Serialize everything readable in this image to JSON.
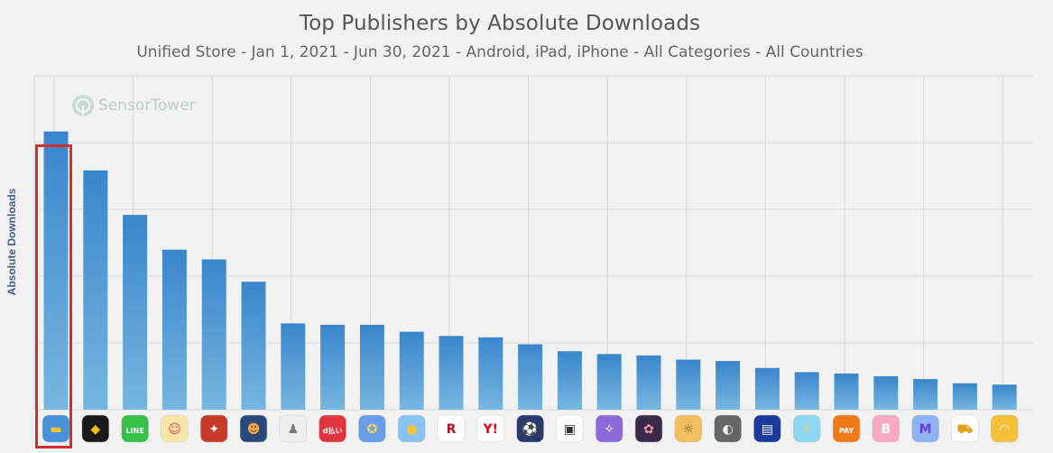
{
  "chart_data": {
    "type": "bar",
    "title": "Top Publishers by Absolute Downloads",
    "subtitle": "Unified Store - Jan 1, 2021 - Jun 30, 2021 - Android, iPad, iPhone - All Categories - All Countries",
    "xlabel": "",
    "ylabel": "Absolute Downloads",
    "watermark": "SensorTower",
    "categories": [
      "",
      "",
      "",
      "",
      "",
      "",
      "",
      "",
      "",
      "",
      "",
      "",
      "",
      "",
      "",
      "",
      "",
      "",
      "",
      "",
      "",
      "",
      "",
      "",
      ""
    ],
    "values": [
      100,
      86,
      70,
      57.5,
      54,
      46,
      31,
      30.5,
      30.5,
      28,
      26.5,
      26,
      23.5,
      21,
      20,
      19.5,
      18,
      17.5,
      15,
      13.5,
      13,
      12,
      11,
      9.5,
      9
    ],
    "ylim": [
      0,
      120
    ],
    "gridlines": true,
    "highlight_index": 0,
    "colors": {
      "bar_top": "#3a86cc",
      "bar_bottom": "#76b6e0",
      "highlight_box": "#d0302a",
      "grid": "#d8d8d8"
    },
    "icons": [
      {
        "name": "blue-car-icon",
        "bg": "#4a90d9",
        "fg": "#f2c230",
        "glyph": "▬"
      },
      {
        "name": "black-app-icon",
        "bg": "#1a1a1a",
        "fg": "#f0c000",
        "glyph": "◆"
      },
      {
        "name": "line-icon",
        "bg": "#35c14a",
        "fg": "#ffffff",
        "glyph": "LINE"
      },
      {
        "name": "cartoon-icon",
        "bg": "#f6e7a8",
        "fg": "#d44",
        "glyph": "☺"
      },
      {
        "name": "game-red-icon",
        "bg": "#c83a2a",
        "fg": "#ffffff",
        "glyph": "✦"
      },
      {
        "name": "anime-icon",
        "bg": "#2b4a7a",
        "fg": "#f4a640",
        "glyph": "☻"
      },
      {
        "name": "figure-icon",
        "bg": "#eeeeee",
        "fg": "#777777",
        "glyph": "♟"
      },
      {
        "name": "dpay-icon",
        "bg": "#e0353f",
        "fg": "#ffffff",
        "glyph": "d払い"
      },
      {
        "name": "game-colorful-icon",
        "bg": "#6a9de8",
        "fg": "#ffd34a",
        "glyph": "✪"
      },
      {
        "name": "ball-game-icon",
        "bg": "#8ac2f0",
        "fg": "#f6c23c",
        "glyph": "●"
      },
      {
        "name": "rakuten-icon",
        "bg": "#ffffff",
        "fg": "#b5121b",
        "glyph": "R"
      },
      {
        "name": "yahoo-icon",
        "bg": "#ffffff",
        "fg": "#e60012",
        "glyph": "Y!"
      },
      {
        "name": "soccer-icon",
        "bg": "#2a3a6a",
        "fg": "#e04040",
        "glyph": "⚽"
      },
      {
        "name": "canon-icon",
        "bg": "#ffffff",
        "fg": "#333333",
        "glyph": "▣"
      },
      {
        "name": "game-character-icon",
        "bg": "#8b6bd8",
        "fg": "#ffffff",
        "glyph": "✧"
      },
      {
        "name": "anime-girl-icon",
        "bg": "#3a2a4a",
        "fg": "#f29ab2",
        "glyph": "✿"
      },
      {
        "name": "character-yellow-icon",
        "bg": "#f0c060",
        "fg": "#7a5a2a",
        "glyph": "☼"
      },
      {
        "name": "monochrome-icon",
        "bg": "#666666",
        "fg": "#eeeeee",
        "glyph": "◐"
      },
      {
        "name": "epson-icon",
        "bg": "#1b3a9a",
        "fg": "#ffffff",
        "glyph": "▤"
      },
      {
        "name": "pokemon-icon",
        "bg": "#8fd7f0",
        "fg": "#f6d63c",
        "glyph": "⚡"
      },
      {
        "name": "au-pay-icon",
        "bg": "#f07a1a",
        "fg": "#ffffff",
        "glyph": "PAY"
      },
      {
        "name": "b-app-icon",
        "bg": "#f7a9c4",
        "fg": "#ffffff",
        "glyph": "B"
      },
      {
        "name": "m-app-icon",
        "bg": "#8fb2f2",
        "fg": "#6a3ad8",
        "glyph": "M"
      },
      {
        "name": "atv-game-icon",
        "bg": "#ffffff",
        "fg": "#e0a020",
        "glyph": "⛟"
      },
      {
        "name": "headphone-icon",
        "bg": "#f3c23a",
        "fg": "#ffffff",
        "glyph": "◠"
      }
    ]
  }
}
